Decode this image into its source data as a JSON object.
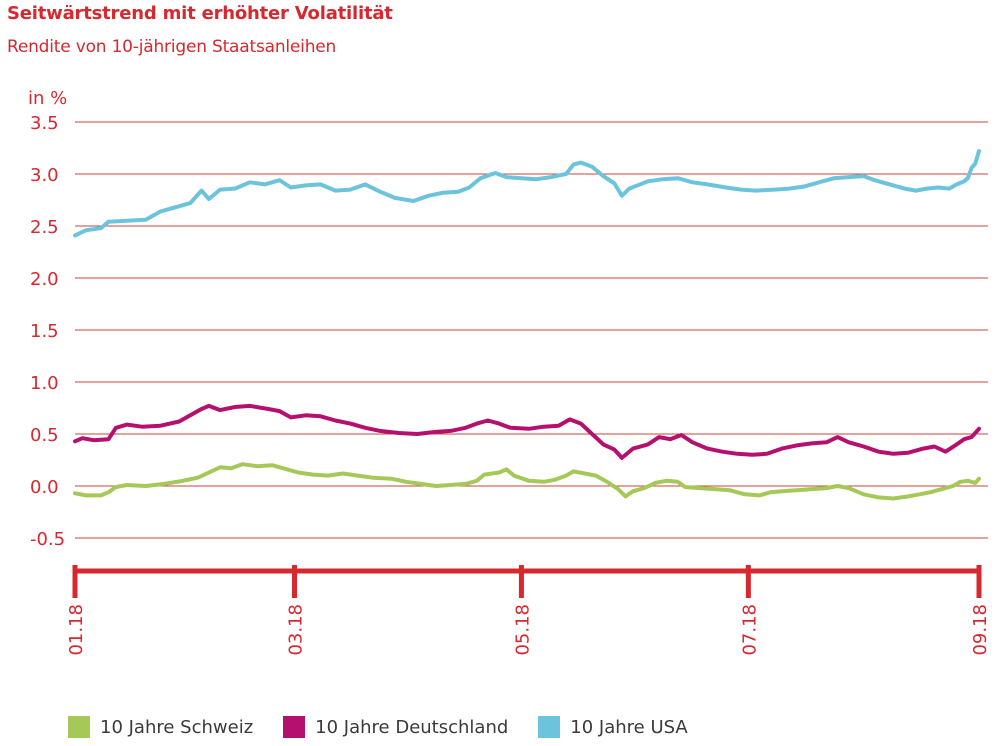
{
  "title": "Seitwärtstrend mit erhöhter Volatilität",
  "subtitle": "Rendite von 10-jährigen Staatsanleihen",
  "colors": {
    "accent": "#d7282f",
    "gridline": "#c9453f",
    "schweiz": "#a6c858",
    "deutschland": "#b6106e",
    "usa": "#6cc4dc"
  },
  "chart_data": {
    "type": "line",
    "ylabel": "in %",
    "ylim": [
      -0.5,
      3.5
    ],
    "yticks": [
      "3.5",
      "3.0",
      "2.5",
      "2.0",
      "1.5",
      "1.0",
      "0.5",
      "0.0",
      "-0.5"
    ],
    "ytick_values": [
      3.5,
      3.0,
      2.5,
      2.0,
      1.5,
      1.0,
      0.5,
      0.0,
      -0.5
    ],
    "xlim": [
      "2018-01-01",
      "2018-09-01"
    ],
    "xticks": [
      "01.18",
      "03.18",
      "05.18",
      "07.18",
      "09.18"
    ],
    "xtick_dates": [
      "2018-01-01",
      "2018-03-01",
      "2018-05-01",
      "2018-07-01",
      "2018-09-01"
    ],
    "grid": true,
    "legend_position": "bottom",
    "series": [
      {
        "name": "10 Jahre Schweiz",
        "color_key": "schweiz",
        "points": [
          [
            "2018-01-01",
            -0.07
          ],
          [
            "2018-01-04",
            -0.09
          ],
          [
            "2018-01-08",
            -0.09
          ],
          [
            "2018-01-10",
            -0.06
          ],
          [
            "2018-01-12",
            -0.01
          ],
          [
            "2018-01-15",
            0.01
          ],
          [
            "2018-01-20",
            0.0
          ],
          [
            "2018-01-25",
            0.02
          ],
          [
            "2018-01-30",
            0.05
          ],
          [
            "2018-02-03",
            0.08
          ],
          [
            "2018-02-06",
            0.13
          ],
          [
            "2018-02-09",
            0.18
          ],
          [
            "2018-02-12",
            0.17
          ],
          [
            "2018-02-15",
            0.21
          ],
          [
            "2018-02-19",
            0.19
          ],
          [
            "2018-02-23",
            0.2
          ],
          [
            "2018-02-26",
            0.17
          ],
          [
            "2018-03-02",
            0.13
          ],
          [
            "2018-03-06",
            0.11
          ],
          [
            "2018-03-10",
            0.1
          ],
          [
            "2018-03-14",
            0.12
          ],
          [
            "2018-03-18",
            0.1
          ],
          [
            "2018-03-22",
            0.08
          ],
          [
            "2018-03-27",
            0.07
          ],
          [
            "2018-03-31",
            0.04
          ],
          [
            "2018-04-04",
            0.02
          ],
          [
            "2018-04-08",
            0.0
          ],
          [
            "2018-04-12",
            0.01
          ],
          [
            "2018-04-16",
            0.02
          ],
          [
            "2018-04-19",
            0.05
          ],
          [
            "2018-04-21",
            0.11
          ],
          [
            "2018-04-25",
            0.13
          ],
          [
            "2018-04-27",
            0.16
          ],
          [
            "2018-04-29",
            0.1
          ],
          [
            "2018-05-03",
            0.05
          ],
          [
            "2018-05-07",
            0.04
          ],
          [
            "2018-05-10",
            0.06
          ],
          [
            "2018-05-13",
            0.1
          ],
          [
            "2018-05-15",
            0.14
          ],
          [
            "2018-05-18",
            0.12
          ],
          [
            "2018-05-21",
            0.1
          ],
          [
            "2018-05-24",
            0.04
          ],
          [
            "2018-05-27",
            -0.03
          ],
          [
            "2018-05-29",
            -0.1
          ],
          [
            "2018-05-31",
            -0.05
          ],
          [
            "2018-06-03",
            -0.02
          ],
          [
            "2018-06-06",
            0.03
          ],
          [
            "2018-06-09",
            0.05
          ],
          [
            "2018-06-12",
            0.04
          ],
          [
            "2018-06-14",
            -0.01
          ],
          [
            "2018-06-18",
            -0.02
          ],
          [
            "2018-06-22",
            -0.03
          ],
          [
            "2018-06-26",
            -0.04
          ],
          [
            "2018-06-30",
            -0.08
          ],
          [
            "2018-07-04",
            -0.09
          ],
          [
            "2018-07-07",
            -0.06
          ],
          [
            "2018-07-10",
            -0.05
          ],
          [
            "2018-07-14",
            -0.04
          ],
          [
            "2018-07-18",
            -0.03
          ],
          [
            "2018-07-22",
            -0.02
          ],
          [
            "2018-07-25",
            0.0
          ],
          [
            "2018-07-28",
            -0.02
          ],
          [
            "2018-08-01",
            -0.08
          ],
          [
            "2018-08-05",
            -0.11
          ],
          [
            "2018-08-09",
            -0.12
          ],
          [
            "2018-08-13",
            -0.1
          ],
          [
            "2018-08-16",
            -0.08
          ],
          [
            "2018-08-19",
            -0.06
          ],
          [
            "2018-08-22",
            -0.03
          ],
          [
            "2018-08-25",
            0.0
          ],
          [
            "2018-08-27",
            0.04
          ],
          [
            "2018-08-29",
            0.05
          ],
          [
            "2018-08-31",
            0.03
          ],
          [
            "2018-09-01",
            0.07
          ]
        ]
      },
      {
        "name": "10 Jahre Deutschland",
        "color_key": "deutschland",
        "points": [
          [
            "2018-01-01",
            0.43
          ],
          [
            "2018-01-03",
            0.46
          ],
          [
            "2018-01-06",
            0.44
          ],
          [
            "2018-01-10",
            0.45
          ],
          [
            "2018-01-12",
            0.56
          ],
          [
            "2018-01-15",
            0.59
          ],
          [
            "2018-01-19",
            0.57
          ],
          [
            "2018-01-24",
            0.58
          ],
          [
            "2018-01-29",
            0.62
          ],
          [
            "2018-02-01",
            0.68
          ],
          [
            "2018-02-04",
            0.74
          ],
          [
            "2018-02-06",
            0.77
          ],
          [
            "2018-02-09",
            0.73
          ],
          [
            "2018-02-13",
            0.76
          ],
          [
            "2018-02-17",
            0.77
          ],
          [
            "2018-02-22",
            0.74
          ],
          [
            "2018-02-25",
            0.72
          ],
          [
            "2018-02-28",
            0.66
          ],
          [
            "2018-03-04",
            0.68
          ],
          [
            "2018-03-08",
            0.67
          ],
          [
            "2018-03-12",
            0.63
          ],
          [
            "2018-03-16",
            0.6
          ],
          [
            "2018-03-20",
            0.56
          ],
          [
            "2018-03-24",
            0.53
          ],
          [
            "2018-03-29",
            0.51
          ],
          [
            "2018-04-03",
            0.5
          ],
          [
            "2018-04-08",
            0.52
          ],
          [
            "2018-04-12",
            0.53
          ],
          [
            "2018-04-16",
            0.56
          ],
          [
            "2018-04-19",
            0.6
          ],
          [
            "2018-04-22",
            0.63
          ],
          [
            "2018-04-25",
            0.6
          ],
          [
            "2018-04-28",
            0.56
          ],
          [
            "2018-05-03",
            0.55
          ],
          [
            "2018-05-07",
            0.57
          ],
          [
            "2018-05-11",
            0.58
          ],
          [
            "2018-05-14",
            0.64
          ],
          [
            "2018-05-17",
            0.6
          ],
          [
            "2018-05-20",
            0.5
          ],
          [
            "2018-05-23",
            0.4
          ],
          [
            "2018-05-26",
            0.35
          ],
          [
            "2018-05-28",
            0.27
          ],
          [
            "2018-05-31",
            0.36
          ],
          [
            "2018-06-04",
            0.4
          ],
          [
            "2018-06-07",
            0.47
          ],
          [
            "2018-06-10",
            0.45
          ],
          [
            "2018-06-13",
            0.49
          ],
          [
            "2018-06-16",
            0.42
          ],
          [
            "2018-06-20",
            0.36
          ],
          [
            "2018-06-24",
            0.33
          ],
          [
            "2018-06-28",
            0.31
          ],
          [
            "2018-07-02",
            0.3
          ],
          [
            "2018-07-06",
            0.31
          ],
          [
            "2018-07-10",
            0.36
          ],
          [
            "2018-07-14",
            0.39
          ],
          [
            "2018-07-18",
            0.41
          ],
          [
            "2018-07-22",
            0.42
          ],
          [
            "2018-07-25",
            0.47
          ],
          [
            "2018-07-28",
            0.42
          ],
          [
            "2018-08-01",
            0.38
          ],
          [
            "2018-08-05",
            0.33
          ],
          [
            "2018-08-09",
            0.31
          ],
          [
            "2018-08-13",
            0.32
          ],
          [
            "2018-08-17",
            0.36
          ],
          [
            "2018-08-20",
            0.38
          ],
          [
            "2018-08-23",
            0.33
          ],
          [
            "2018-08-26",
            0.4
          ],
          [
            "2018-08-28",
            0.45
          ],
          [
            "2018-08-30",
            0.47
          ],
          [
            "2018-09-01",
            0.55
          ]
        ]
      },
      {
        "name": "10 Jahre USA",
        "color_key": "usa",
        "points": [
          [
            "2018-01-01",
            2.41
          ],
          [
            "2018-01-04",
            2.46
          ],
          [
            "2018-01-08",
            2.48
          ],
          [
            "2018-01-10",
            2.54
          ],
          [
            "2018-01-15",
            2.55
          ],
          [
            "2018-01-20",
            2.56
          ],
          [
            "2018-01-24",
            2.64
          ],
          [
            "2018-01-28",
            2.68
          ],
          [
            "2018-02-01",
            2.72
          ],
          [
            "2018-02-04",
            2.84
          ],
          [
            "2018-02-06",
            2.76
          ],
          [
            "2018-02-09",
            2.85
          ],
          [
            "2018-02-13",
            2.86
          ],
          [
            "2018-02-17",
            2.92
          ],
          [
            "2018-02-21",
            2.9
          ],
          [
            "2018-02-25",
            2.94
          ],
          [
            "2018-02-28",
            2.87
          ],
          [
            "2018-03-04",
            2.89
          ],
          [
            "2018-03-08",
            2.9
          ],
          [
            "2018-03-12",
            2.84
          ],
          [
            "2018-03-16",
            2.85
          ],
          [
            "2018-03-20",
            2.9
          ],
          [
            "2018-03-24",
            2.83
          ],
          [
            "2018-03-28",
            2.77
          ],
          [
            "2018-04-02",
            2.74
          ],
          [
            "2018-04-06",
            2.79
          ],
          [
            "2018-04-10",
            2.82
          ],
          [
            "2018-04-14",
            2.83
          ],
          [
            "2018-04-17",
            2.87
          ],
          [
            "2018-04-20",
            2.96
          ],
          [
            "2018-04-24",
            3.01
          ],
          [
            "2018-04-27",
            2.97
          ],
          [
            "2018-05-01",
            2.96
          ],
          [
            "2018-05-05",
            2.95
          ],
          [
            "2018-05-09",
            2.97
          ],
          [
            "2018-05-13",
            3.0
          ],
          [
            "2018-05-15",
            3.09
          ],
          [
            "2018-05-17",
            3.11
          ],
          [
            "2018-05-20",
            3.07
          ],
          [
            "2018-05-23",
            2.98
          ],
          [
            "2018-05-26",
            2.91
          ],
          [
            "2018-05-28",
            2.79
          ],
          [
            "2018-05-30",
            2.86
          ],
          [
            "2018-06-04",
            2.93
          ],
          [
            "2018-06-08",
            2.95
          ],
          [
            "2018-06-12",
            2.96
          ],
          [
            "2018-06-16",
            2.92
          ],
          [
            "2018-06-20",
            2.9
          ],
          [
            "2018-06-25",
            2.87
          ],
          [
            "2018-06-29",
            2.85
          ],
          [
            "2018-07-03",
            2.84
          ],
          [
            "2018-07-08",
            2.85
          ],
          [
            "2018-07-12",
            2.86
          ],
          [
            "2018-07-16",
            2.88
          ],
          [
            "2018-07-20",
            2.92
          ],
          [
            "2018-07-24",
            2.96
          ],
          [
            "2018-07-28",
            2.97
          ],
          [
            "2018-08-01",
            2.98
          ],
          [
            "2018-08-04",
            2.94
          ],
          [
            "2018-08-08",
            2.9
          ],
          [
            "2018-08-12",
            2.86
          ],
          [
            "2018-08-15",
            2.84
          ],
          [
            "2018-08-18",
            2.86
          ],
          [
            "2018-08-21",
            2.87
          ],
          [
            "2018-08-24",
            2.86
          ],
          [
            "2018-08-26",
            2.9
          ],
          [
            "2018-08-28",
            2.93
          ],
          [
            "2018-08-29",
            2.96
          ],
          [
            "2018-08-30",
            3.06
          ],
          [
            "2018-08-31",
            3.1
          ],
          [
            "2018-09-01",
            3.22
          ]
        ]
      }
    ]
  }
}
